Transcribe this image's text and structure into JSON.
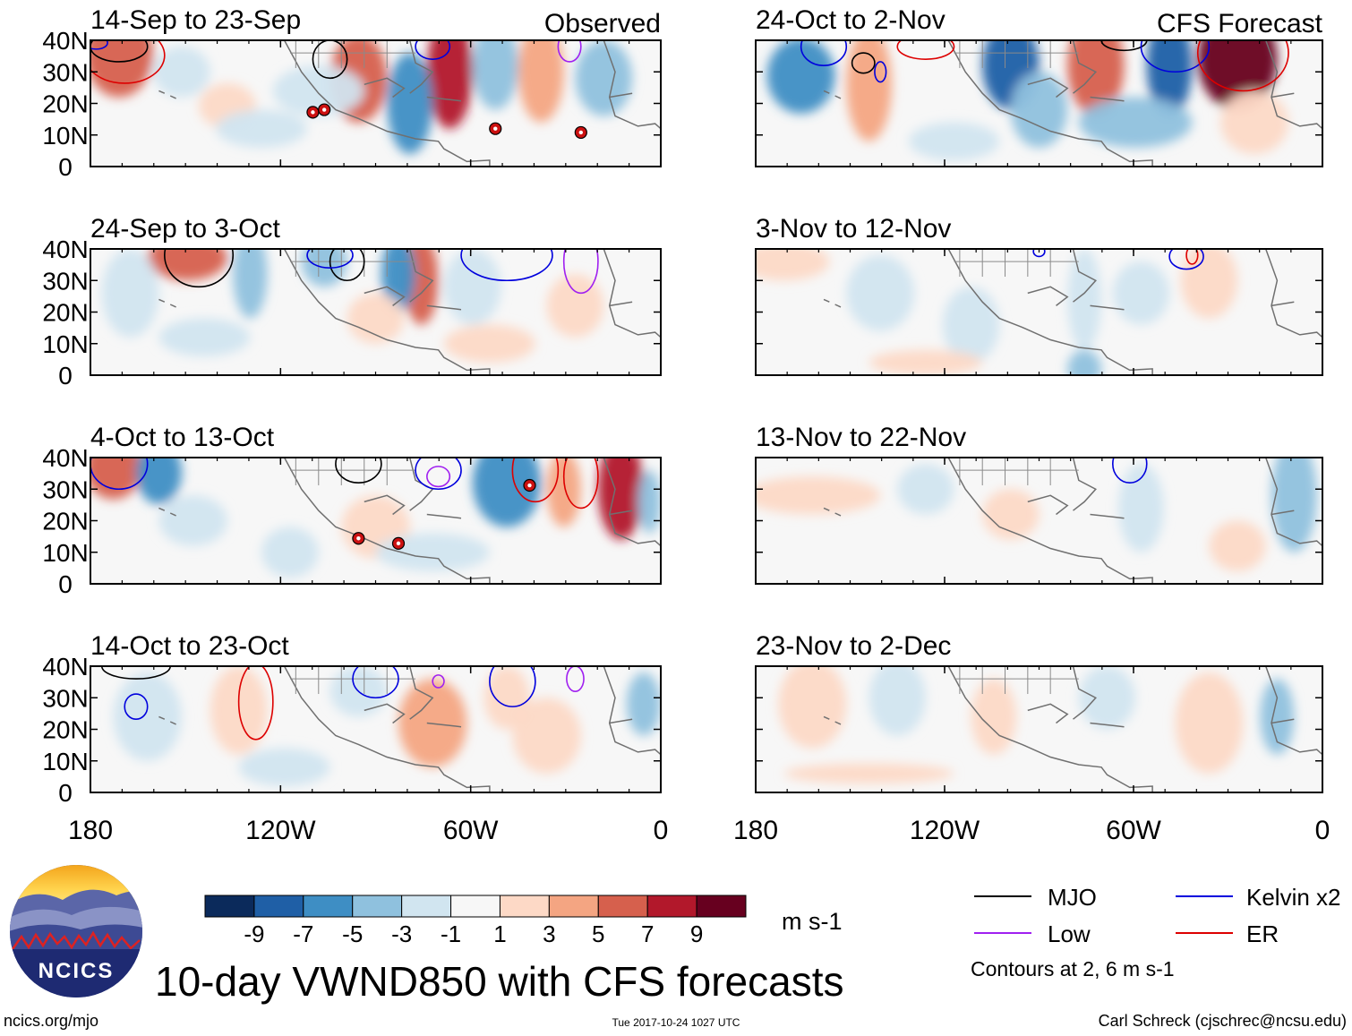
{
  "chart_data": {
    "type": "heatmap",
    "title": "10-day VWND850 with CFS forecasts",
    "variable": "VWND850",
    "units": "m s-1",
    "x_ticks": [
      "180",
      "120W",
      "60W",
      "0"
    ],
    "y_ticks": [
      "40N",
      "30N",
      "20N",
      "10N",
      "0"
    ],
    "xlim_deg_east": [
      -180,
      0
    ],
    "ylim_deg_north": [
      0,
      40
    ],
    "columns": [
      {
        "label": "Observed",
        "panels": [
          {
            "period": "14-Sep to 23-Sep"
          },
          {
            "period": "24-Sep to 3-Oct"
          },
          {
            "period": "4-Oct to 13-Oct"
          },
          {
            "period": "14-Oct to 23-Oct"
          }
        ]
      },
      {
        "label": "CFS Forecast",
        "panels": [
          {
            "period": "24-Oct to 2-Nov"
          },
          {
            "period": "3-Nov to 12-Nov"
          },
          {
            "period": "13-Nov to 22-Nov"
          },
          {
            "period": "23-Nov to 2-Dec"
          }
        ]
      }
    ],
    "colorbar": {
      "tick_labels": [
        "-9",
        "-7",
        "-5",
        "-3",
        "-1",
        "1",
        "3",
        "5",
        "7",
        "9"
      ],
      "colors": [
        "#0b2a5b",
        "#1f5fa6",
        "#3e8ec4",
        "#8fc1de",
        "#d1e5f0",
        "#f7f7f7",
        "#fdd9c6",
        "#f4a582",
        "#d6604d",
        "#b2182b",
        "#67001f"
      ]
    },
    "legend": [
      {
        "label": "MJO",
        "color": "#000000"
      },
      {
        "label": "Kelvin x2",
        "color": "#0000dd"
      },
      {
        "label": "Low",
        "color": "#a020f0"
      },
      {
        "label": "ER",
        "color": "#dd0000"
      }
    ],
    "contour_note": "Contours at 2, 6 m s-1"
  },
  "footer": {
    "logo_text": "NCICS",
    "url": "ncics.org/mjo",
    "timestamp": "Tue 2017-10-24 1027 UTC",
    "credit": "Carl Schreck (cjschrec@ncsu.edu)"
  }
}
